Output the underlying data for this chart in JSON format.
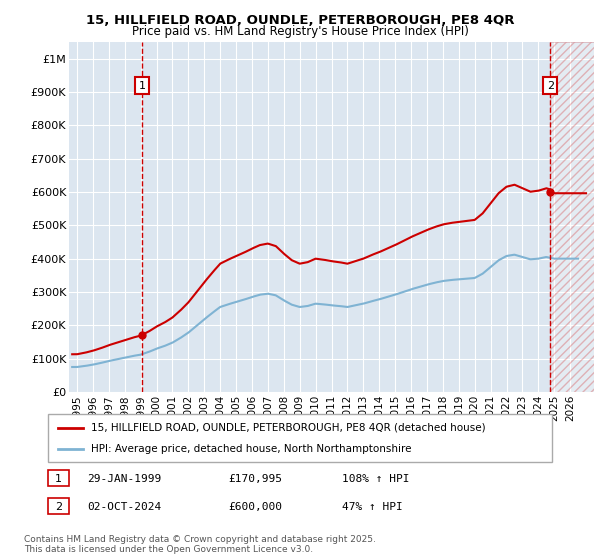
{
  "title_line1": "15, HILLFIELD ROAD, OUNDLE, PETERBOROUGH, PE8 4QR",
  "title_line2": "Price paid vs. HM Land Registry's House Price Index (HPI)",
  "red_label": "15, HILLFIELD ROAD, OUNDLE, PETERBOROUGH, PE8 4QR (detached house)",
  "blue_label": "HPI: Average price, detached house, North Northamptonshire",
  "annotation1_label": "1",
  "annotation1_date": "29-JAN-1999",
  "annotation1_price": "£170,995",
  "annotation1_hpi": "108% ↑ HPI",
  "annotation2_label": "2",
  "annotation2_date": "02-OCT-2024",
  "annotation2_price": "£600,000",
  "annotation2_hpi": "47% ↑ HPI",
  "footnote": "Contains HM Land Registry data © Crown copyright and database right 2025.\nThis data is licensed under the Open Government Licence v3.0.",
  "xmin": 1994.5,
  "xmax": 2027.5,
  "ymin": 0,
  "ymax": 1050000,
  "yticks": [
    0,
    100000,
    200000,
    300000,
    400000,
    500000,
    600000,
    700000,
    800000,
    900000,
    1000000
  ],
  "ytick_labels": [
    "£0",
    "£100K",
    "£200K",
    "£300K",
    "£400K",
    "£500K",
    "£600K",
    "£700K",
    "£800K",
    "£900K",
    "£1M"
  ],
  "plot_bg_color": "#dce6f0",
  "red_color": "#cc0000",
  "blue_color": "#7fb3d3",
  "marker1_x": 1999.08,
  "marker1_y": 170995,
  "marker2_x": 2024.75,
  "marker2_y": 600000,
  "sale1_x": 1999.08,
  "sale2_x": 2024.75,
  "years_hpi": [
    1995,
    1995.5,
    1996,
    1996.5,
    1997,
    1997.5,
    1998,
    1998.5,
    1999,
    1999.5,
    2000,
    2000.5,
    2001,
    2001.5,
    2002,
    2002.5,
    2003,
    2003.5,
    2004,
    2004.5,
    2005,
    2005.5,
    2006,
    2006.5,
    2007,
    2007.5,
    2008,
    2008.5,
    2009,
    2009.5,
    2010,
    2010.5,
    2011,
    2011.5,
    2012,
    2012.5,
    2013,
    2013.5,
    2014,
    2014.5,
    2015,
    2015.5,
    2016,
    2016.5,
    2017,
    2017.5,
    2018,
    2018.5,
    2019,
    2019.5,
    2020,
    2020.5,
    2021,
    2021.5,
    2022,
    2022.5,
    2023,
    2023.5,
    2024,
    2024.5,
    2025
  ],
  "hpi_values": [
    75000,
    78000,
    82000,
    87000,
    93000,
    98000,
    103000,
    108000,
    112000,
    120000,
    130000,
    138000,
    148000,
    162000,
    178000,
    198000,
    218000,
    237000,
    255000,
    263000,
    270000,
    277000,
    285000,
    292000,
    295000,
    290000,
    275000,
    262000,
    255000,
    258000,
    265000,
    263000,
    260000,
    258000,
    255000,
    260000,
    265000,
    272000,
    278000,
    285000,
    292000,
    300000,
    308000,
    315000,
    322000,
    328000,
    333000,
    336000,
    338000,
    340000,
    342000,
    355000,
    375000,
    395000,
    408000,
    412000,
    405000,
    398000,
    400000,
    405000,
    400000
  ]
}
